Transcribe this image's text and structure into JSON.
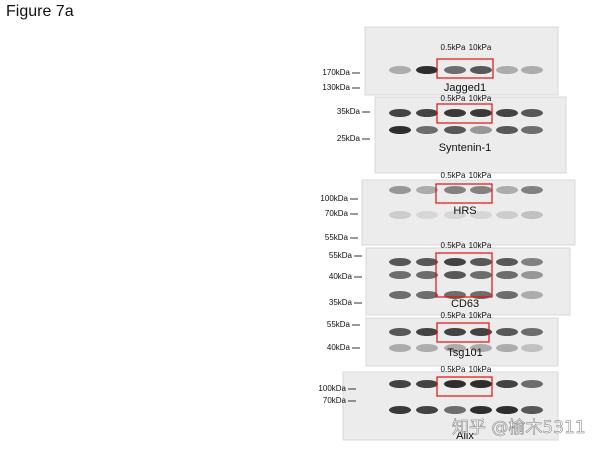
{
  "figure": {
    "title": "Figure 7a",
    "panels": [
      {
        "protein": "Jagged1",
        "conditions": [
          "0.5kPa",
          "10kPa"
        ],
        "markers": [
          "170kDa",
          "130kDa"
        ]
      },
      {
        "protein": "Syntenin-1",
        "conditions": [
          "0.5kPa",
          "10kPa"
        ],
        "markers": [
          "35kDa",
          "25kDa"
        ]
      },
      {
        "protein": "HRS",
        "conditions": [
          "0.5kPa",
          "10kPa"
        ],
        "markers": [
          "100kDa",
          "70kDa",
          "55kDa"
        ]
      },
      {
        "protein": "CD63",
        "conditions": [
          "0.5kPa",
          "10kPa"
        ],
        "markers": [
          "55kDa",
          "40kDa",
          "35kDa"
        ]
      },
      {
        "protein": "Tsg101",
        "conditions": [
          "0.5kPa",
          "10kPa"
        ],
        "markers": [
          "55kDa",
          "40kDa"
        ]
      },
      {
        "protein": "Alix",
        "conditions": [
          "0.5kPa",
          "10kPa"
        ],
        "markers": [
          "100kDa",
          "70kDa"
        ]
      }
    ],
    "watermark": "知乎 @榆木5311"
  }
}
